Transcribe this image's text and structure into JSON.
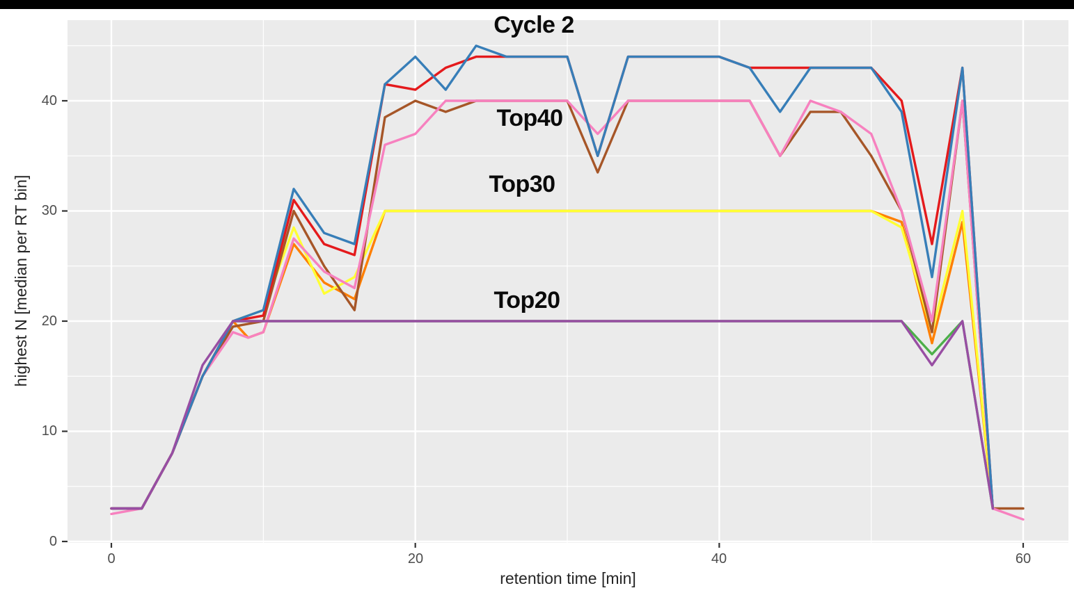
{
  "ui": {
    "top_bar_color": "#000000",
    "background_color": "#ffffff",
    "panel_background": "#ebebeb",
    "grid_color": "#ffffff",
    "tick_label_color": "#4d4d4d",
    "axis_title_color": "#262626",
    "annotation_color": "#0a0a0a"
  },
  "chart_data": {
    "type": "line",
    "xlabel": "retention time [min]",
    "ylabel": "highest N [median per RT bin]",
    "xlim": [
      0,
      60
    ],
    "ylim": [
      0,
      45
    ],
    "grid": "on",
    "legend_position": "none",
    "x_ticks": [
      0,
      20,
      40,
      60
    ],
    "x_tick_labels": [
      "0",
      "20",
      "40",
      "60"
    ],
    "x_minor_ticks": [
      10,
      30,
      50
    ],
    "y_ticks": [
      0,
      10,
      20,
      30,
      40
    ],
    "y_tick_labels": [
      "0",
      "10",
      "20",
      "30",
      "40"
    ],
    "y_minor_ticks": [
      5,
      15,
      25,
      35,
      45
    ],
    "annotations": [
      {
        "label": "Cycle 2",
        "x_min": 27.8,
        "y_value": 46.8
      },
      {
        "label": "Top40",
        "x_min": 27.5,
        "y_value": 38.3
      },
      {
        "label": "Top30",
        "x_min": 27.0,
        "y_value": 32.4
      },
      {
        "label": "Top20",
        "x_min": 27.3,
        "y_value": 21.8
      }
    ],
    "series": [
      {
        "name": "top20-green",
        "group": "Top20",
        "color": "#4DAF4A",
        "points": [
          [
            0,
            3
          ],
          [
            2,
            3
          ],
          [
            4,
            8
          ],
          [
            6,
            15
          ],
          [
            8,
            20
          ],
          [
            10,
            20
          ],
          [
            12,
            20
          ],
          [
            14,
            20
          ],
          [
            16,
            20
          ],
          [
            18,
            20
          ],
          [
            20,
            20
          ],
          [
            22,
            20
          ],
          [
            24,
            20
          ],
          [
            26,
            20
          ],
          [
            28,
            20
          ],
          [
            30,
            20
          ],
          [
            32,
            20
          ],
          [
            34,
            20
          ],
          [
            36,
            20
          ],
          [
            38,
            20
          ],
          [
            40,
            20
          ],
          [
            42,
            20
          ],
          [
            44,
            20
          ],
          [
            46,
            20
          ],
          [
            48,
            20
          ],
          [
            50,
            20
          ],
          [
            52,
            20
          ],
          [
            54,
            17
          ],
          [
            56,
            20
          ],
          [
            58,
            3
          ]
        ]
      },
      {
        "name": "top30-orange",
        "group": "Top30",
        "color": "#FF7F00",
        "points": [
          [
            0,
            3
          ],
          [
            2,
            3
          ],
          [
            4,
            8
          ],
          [
            6,
            15
          ],
          [
            8,
            20
          ],
          [
            9,
            18.5
          ],
          [
            10,
            19
          ],
          [
            12,
            27
          ],
          [
            14,
            23.5
          ],
          [
            16,
            22
          ],
          [
            18,
            30
          ],
          [
            20,
            30
          ],
          [
            22,
            30
          ],
          [
            24,
            30
          ],
          [
            26,
            30
          ],
          [
            28,
            30
          ],
          [
            30,
            30
          ],
          [
            32,
            30
          ],
          [
            34,
            30
          ],
          [
            36,
            30
          ],
          [
            38,
            30
          ],
          [
            40,
            30
          ],
          [
            42,
            30
          ],
          [
            44,
            30
          ],
          [
            46,
            30
          ],
          [
            48,
            30
          ],
          [
            50,
            30
          ],
          [
            52,
            29
          ],
          [
            54,
            18
          ],
          [
            56,
            29
          ],
          [
            58,
            3
          ]
        ]
      },
      {
        "name": "top30-yellow",
        "group": "Top30",
        "color": "#FFFF33",
        "points": [
          [
            0,
            3
          ],
          [
            2,
            3
          ],
          [
            4,
            8
          ],
          [
            6,
            15
          ],
          [
            8,
            20
          ],
          [
            10,
            21
          ],
          [
            12,
            28.5
          ],
          [
            14,
            22.5
          ],
          [
            16,
            24
          ],
          [
            18,
            30
          ],
          [
            20,
            30
          ],
          [
            22,
            30
          ],
          [
            24,
            30
          ],
          [
            26,
            30
          ],
          [
            28,
            30
          ],
          [
            30,
            30
          ],
          [
            32,
            30
          ],
          [
            34,
            30
          ],
          [
            36,
            30
          ],
          [
            38,
            30
          ],
          [
            40,
            30
          ],
          [
            42,
            30
          ],
          [
            44,
            30
          ],
          [
            46,
            30
          ],
          [
            48,
            30
          ],
          [
            50,
            30
          ],
          [
            52,
            28.5
          ],
          [
            54,
            19
          ],
          [
            56,
            30
          ],
          [
            58,
            3
          ]
        ]
      },
      {
        "name": "top40-brown",
        "group": "Top40",
        "color": "#A65628",
        "points": [
          [
            0,
            3
          ],
          [
            2,
            3
          ],
          [
            4,
            8
          ],
          [
            6,
            15
          ],
          [
            8,
            19.5
          ],
          [
            10,
            20
          ],
          [
            12,
            30
          ],
          [
            14,
            25
          ],
          [
            16,
            21
          ],
          [
            18,
            38.5
          ],
          [
            20,
            40
          ],
          [
            22,
            39
          ],
          [
            24,
            40
          ],
          [
            26,
            40
          ],
          [
            28,
            40
          ],
          [
            30,
            40
          ],
          [
            32,
            33.5
          ],
          [
            34,
            40
          ],
          [
            36,
            40
          ],
          [
            38,
            40
          ],
          [
            40,
            40
          ],
          [
            42,
            40
          ],
          [
            44,
            35
          ],
          [
            46,
            39
          ],
          [
            48,
            39
          ],
          [
            50,
            35
          ],
          [
            52,
            30
          ],
          [
            54,
            19
          ],
          [
            56,
            40
          ],
          [
            58,
            3
          ],
          [
            60,
            3
          ]
        ]
      },
      {
        "name": "top40-pink",
        "group": "Top40",
        "color": "#F781BF",
        "points": [
          [
            0,
            2.5
          ],
          [
            2,
            3
          ],
          [
            4,
            8
          ],
          [
            6,
            15
          ],
          [
            8,
            19
          ],
          [
            9,
            18.5
          ],
          [
            10,
            19
          ],
          [
            12,
            27.5
          ],
          [
            14,
            24.5
          ],
          [
            16,
            23
          ],
          [
            18,
            36
          ],
          [
            20,
            37
          ],
          [
            22,
            40
          ],
          [
            24,
            40
          ],
          [
            26,
            40
          ],
          [
            28,
            40
          ],
          [
            30,
            40
          ],
          [
            32,
            37
          ],
          [
            34,
            40
          ],
          [
            36,
            40
          ],
          [
            38,
            40
          ],
          [
            40,
            40
          ],
          [
            42,
            40
          ],
          [
            44,
            35
          ],
          [
            46,
            40
          ],
          [
            48,
            39
          ],
          [
            50,
            37
          ],
          [
            52,
            30
          ],
          [
            54,
            20
          ],
          [
            56,
            40
          ],
          [
            58,
            3
          ],
          [
            60,
            2
          ]
        ]
      },
      {
        "name": "cycle2-red",
        "group": "Cycle 2",
        "color": "#E41A1C",
        "points": [
          [
            0,
            3
          ],
          [
            2,
            3
          ],
          [
            4,
            8
          ],
          [
            6,
            15
          ],
          [
            8,
            20
          ],
          [
            10,
            20.5
          ],
          [
            12,
            31
          ],
          [
            14,
            27
          ],
          [
            16,
            26
          ],
          [
            18,
            41.5
          ],
          [
            20,
            41
          ],
          [
            22,
            43
          ],
          [
            24,
            44
          ],
          [
            26,
            44
          ],
          [
            28,
            44
          ],
          [
            30,
            44
          ],
          [
            32,
            35
          ],
          [
            34,
            44
          ],
          [
            36,
            44
          ],
          [
            38,
            44
          ],
          [
            40,
            44
          ],
          [
            42,
            43
          ],
          [
            44,
            43
          ],
          [
            46,
            43
          ],
          [
            48,
            43
          ],
          [
            50,
            43
          ],
          [
            52,
            40
          ],
          [
            54,
            27
          ],
          [
            56,
            43
          ],
          [
            58,
            3
          ]
        ]
      },
      {
        "name": "cycle2-blue",
        "group": "Cycle 2",
        "color": "#377EB8",
        "points": [
          [
            0,
            3
          ],
          [
            2,
            3
          ],
          [
            4,
            8
          ],
          [
            6,
            15
          ],
          [
            8,
            20
          ],
          [
            10,
            21
          ],
          [
            12,
            32
          ],
          [
            14,
            28
          ],
          [
            16,
            27
          ],
          [
            18,
            41.5
          ],
          [
            20,
            44
          ],
          [
            22,
            41
          ],
          [
            24,
            45
          ],
          [
            26,
            44
          ],
          [
            28,
            44
          ],
          [
            30,
            44
          ],
          [
            32,
            35
          ],
          [
            34,
            44
          ],
          [
            36,
            44
          ],
          [
            38,
            44
          ],
          [
            40,
            44
          ],
          [
            42,
            43
          ],
          [
            44,
            39
          ],
          [
            46,
            43
          ],
          [
            48,
            43
          ],
          [
            50,
            43
          ],
          [
            52,
            39
          ],
          [
            54,
            24
          ],
          [
            56,
            43
          ],
          [
            58,
            3
          ]
        ]
      },
      {
        "name": "top20-purple",
        "group": "Top20",
        "color": "#984EA3",
        "points": [
          [
            0,
            3
          ],
          [
            2,
            3
          ],
          [
            4,
            8
          ],
          [
            6,
            16
          ],
          [
            8,
            20
          ],
          [
            10,
            20
          ],
          [
            12,
            20
          ],
          [
            14,
            20
          ],
          [
            16,
            20
          ],
          [
            18,
            20
          ],
          [
            20,
            20
          ],
          [
            22,
            20
          ],
          [
            24,
            20
          ],
          [
            26,
            20
          ],
          [
            28,
            20
          ],
          [
            30,
            20
          ],
          [
            32,
            20
          ],
          [
            34,
            20
          ],
          [
            36,
            20
          ],
          [
            38,
            20
          ],
          [
            40,
            20
          ],
          [
            42,
            20
          ],
          [
            44,
            20
          ],
          [
            46,
            20
          ],
          [
            48,
            20
          ],
          [
            50,
            20
          ],
          [
            52,
            20
          ],
          [
            54,
            16
          ],
          [
            56,
            20
          ],
          [
            58,
            3
          ]
        ]
      }
    ]
  }
}
